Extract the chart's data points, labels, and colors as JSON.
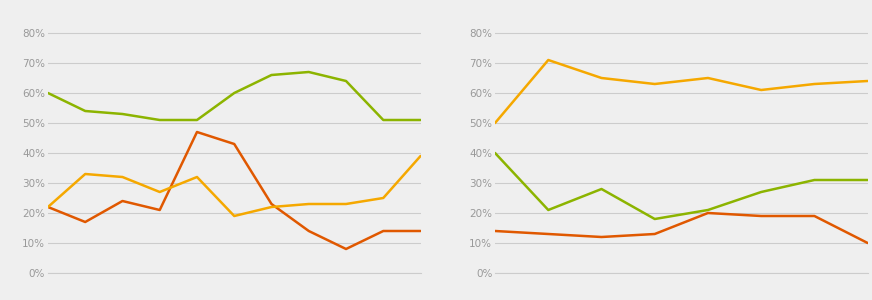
{
  "left": {
    "x": [
      0,
      1,
      2,
      3,
      4,
      5,
      6,
      7,
      8,
      9,
      10
    ],
    "green": [
      60,
      54,
      53,
      51,
      51,
      60,
      66,
      67,
      64,
      51,
      51
    ],
    "orange": [
      22,
      17,
      24,
      21,
      47,
      43,
      23,
      14,
      8,
      14,
      14
    ],
    "yellow": [
      22,
      33,
      32,
      27,
      32,
      19,
      22,
      23,
      23,
      25,
      39
    ]
  },
  "right": {
    "x": [
      0,
      1,
      2,
      3,
      4,
      5,
      6,
      7
    ],
    "yellow": [
      50,
      71,
      65,
      63,
      65,
      61,
      63,
      64
    ],
    "green": [
      40,
      21,
      28,
      18,
      21,
      27,
      31,
      31
    ],
    "orange": [
      14,
      13,
      12,
      13,
      20,
      19,
      19,
      10
    ]
  },
  "green_color": "#8cb400",
  "orange_color": "#e05800",
  "yellow_color": "#f5a800",
  "bg_color": "#efefef",
  "grid_color": "#cccccc",
  "ytick_color": "#999999",
  "ylim": [
    0,
    88
  ],
  "yticks": [
    0,
    10,
    20,
    30,
    40,
    50,
    60,
    70,
    80
  ],
  "ytick_labels": [
    "0%",
    "10%",
    "20%",
    "30%",
    "40%",
    "50%",
    "60%",
    "70%",
    "80%"
  ],
  "line_width": 1.8,
  "tick_fontsize": 7.5
}
